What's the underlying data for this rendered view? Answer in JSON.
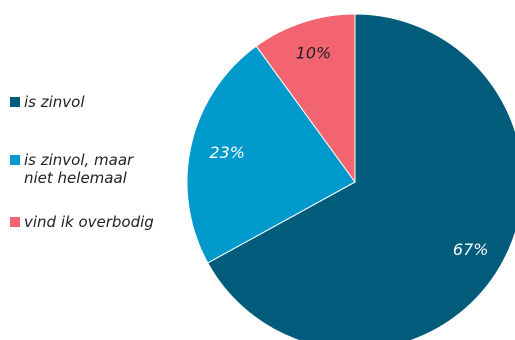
{
  "chart_data": {
    "type": "pie",
    "title": "",
    "start_angle_deg": 0,
    "direction": "clockwise",
    "legend_position": "left",
    "slices": [
      {
        "name": "is zinvol",
        "value": 67,
        "label": "67%",
        "color": "#005c7a"
      },
      {
        "name": "is zinvol, maar\nniet helemaal",
        "value": 23,
        "label": "23%",
        "color": "#0099cc"
      },
      {
        "name": "vind ik overbodig",
        "value": 10,
        "label": "10%",
        "color": "#f26470"
      }
    ]
  }
}
